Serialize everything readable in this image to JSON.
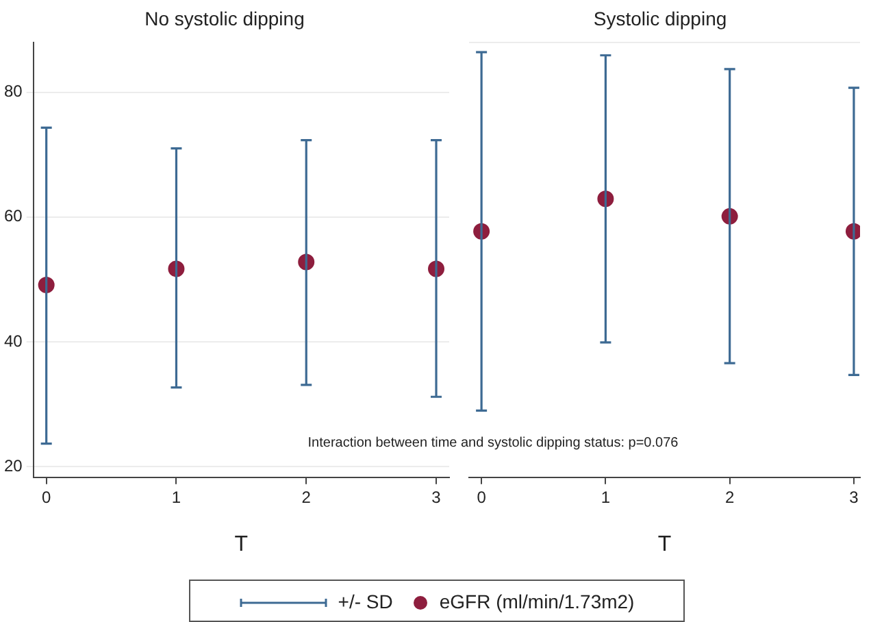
{
  "chart_data": [
    {
      "type": "scatter",
      "title": "No systolic dipping",
      "xlabel": "T",
      "x": [
        0,
        1,
        2,
        3
      ],
      "xlim": [
        -0.1,
        3.1
      ],
      "xticks": [
        0,
        1,
        2,
        3
      ],
      "ylim": [
        18.3,
        88
      ],
      "yticks": [
        20,
        40,
        60,
        80
      ],
      "series": [
        {
          "name": "eGFR (ml/min/1.73m2)",
          "color": "#8e1e3e",
          "values": [
            49.1,
            51.7,
            52.8,
            51.7
          ],
          "errors": [
            [
              23.7,
              74.3
            ],
            [
              32.7,
              71
            ],
            [
              33.1,
              72.3
            ],
            [
              31.2,
              72.3
            ]
          ]
        }
      ],
      "annotations": [
        "+/- SD"
      ],
      "marker": "circle",
      "grid": "y",
      "legend": "bottom"
    },
    {
      "type": "scatter",
      "title": "Systolic dipping",
      "xlabel": "T",
      "x": [
        0,
        1,
        2,
        3
      ],
      "xlim": [
        -0.1,
        3.05
      ],
      "xticks": [
        0,
        1,
        2,
        3
      ],
      "ylim": [
        18.3,
        88
      ],
      "tick_labels": "x",
      "series": [
        {
          "color": "#8e1e3e",
          "values": [
            57.7,
            62.9,
            60.1,
            57.7
          ],
          "errors": [
            [
              29,
              86.4
            ],
            [
              39.9,
              85.9
            ],
            [
              36.6,
              83.7
            ],
            [
              34.7,
              80.7
            ]
          ]
        }
      ],
      "annotations": [
        "Interaction between time and systolic dipping status: p=0.076"
      ],
      "marker": "circle",
      "grid": "y"
    }
  ]
}
